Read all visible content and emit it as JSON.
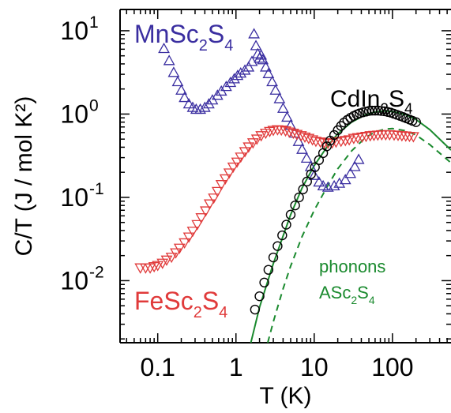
{
  "chart_data": {
    "type": "scatter",
    "xlabel": "T (K)",
    "ylabel": "C/T (J / mol K²)",
    "xscale": "log",
    "yscale": "log",
    "xlim": [
      0.033,
      560
    ],
    "ylim": [
      0.0018,
      18
    ],
    "x_ticks": [
      {
        "value": 0.1,
        "label": "0.1"
      },
      {
        "value": 1,
        "label": "1"
      },
      {
        "value": 10,
        "label": "10"
      },
      {
        "value": 100,
        "label": "100"
      }
    ],
    "y_ticks": [
      {
        "value": 0.01,
        "base": "10",
        "exp": "-2"
      },
      {
        "value": 0.1,
        "base": "10",
        "exp": "-1"
      },
      {
        "value": 1,
        "base": "10",
        "exp": "0"
      },
      {
        "value": 10,
        "base": "10",
        "exp": "1"
      }
    ],
    "grid": false,
    "series": [
      {
        "label_parts": {
          "base": "MnSc",
          "sub1": "2",
          "mid": "S",
          "sub2": "4"
        },
        "marker": "triangle-up",
        "color": "#3a2ea0",
        "points": [
          [
            0.12,
            6.0
          ],
          [
            0.14,
            4.3
          ],
          [
            0.16,
            3.1
          ],
          [
            0.18,
            2.4
          ],
          [
            0.2,
            1.9
          ],
          [
            0.22,
            1.55
          ],
          [
            0.25,
            1.3
          ],
          [
            0.28,
            1.18
          ],
          [
            0.31,
            1.12
          ],
          [
            0.35,
            1.12
          ],
          [
            0.4,
            1.18
          ],
          [
            0.45,
            1.3
          ],
          [
            0.5,
            1.45
          ],
          [
            0.58,
            1.65
          ],
          [
            0.65,
            1.85
          ],
          [
            0.75,
            2.1
          ],
          [
            0.85,
            2.35
          ],
          [
            0.95,
            2.6
          ],
          [
            1.05,
            2.85
          ],
          [
            1.15,
            3.05
          ],
          [
            1.3,
            3.3
          ],
          [
            1.45,
            3.6
          ],
          [
            1.6,
            4.2
          ],
          [
            1.7,
            9.0
          ],
          [
            1.8,
            6.5
          ],
          [
            1.9,
            5.2
          ],
          [
            2.0,
            4.6
          ],
          [
            2.1,
            5.0
          ],
          [
            2.2,
            4.4
          ],
          [
            2.4,
            3.6
          ],
          [
            2.6,
            3.0
          ],
          [
            2.9,
            2.4
          ],
          [
            3.2,
            1.9
          ],
          [
            3.6,
            1.5
          ],
          [
            4.0,
            1.15
          ],
          [
            4.5,
            0.9
          ],
          [
            5.0,
            0.72
          ],
          [
            5.6,
            0.58
          ],
          [
            6.3,
            0.46
          ],
          [
            7.0,
            0.37
          ],
          [
            8.0,
            0.29
          ],
          [
            9.0,
            0.23
          ],
          [
            10.0,
            0.18
          ],
          [
            11.5,
            0.15
          ],
          [
            13.0,
            0.135
          ],
          [
            15.0,
            0.13
          ],
          [
            18.0,
            0.135
          ],
          [
            21.0,
            0.145
          ],
          [
            25.0,
            0.16
          ],
          [
            29.0,
            0.19
          ],
          [
            33.0,
            0.23
          ],
          [
            37.0,
            0.28
          ]
        ]
      },
      {
        "label_parts": {
          "base": "FeSc",
          "sub1": "2",
          "mid": "S",
          "sub2": "4"
        },
        "marker": "triangle-down",
        "color": "#e03a3a",
        "points": [
          [
            0.06,
            0.0145
          ],
          [
            0.07,
            0.0145
          ],
          [
            0.08,
            0.0145
          ],
          [
            0.09,
            0.015
          ],
          [
            0.1,
            0.0155
          ],
          [
            0.115,
            0.0165
          ],
          [
            0.13,
            0.018
          ],
          [
            0.15,
            0.0195
          ],
          [
            0.17,
            0.022
          ],
          [
            0.19,
            0.025
          ],
          [
            0.22,
            0.029
          ],
          [
            0.25,
            0.034
          ],
          [
            0.28,
            0.04
          ],
          [
            0.32,
            0.048
          ],
          [
            0.36,
            0.058
          ],
          [
            0.41,
            0.07
          ],
          [
            0.46,
            0.085
          ],
          [
            0.52,
            0.1
          ],
          [
            0.58,
            0.12
          ],
          [
            0.65,
            0.145
          ],
          [
            0.73,
            0.17
          ],
          [
            0.82,
            0.2
          ],
          [
            0.92,
            0.235
          ],
          [
            1.03,
            0.27
          ],
          [
            1.15,
            0.31
          ],
          [
            1.3,
            0.36
          ],
          [
            1.45,
            0.41
          ],
          [
            1.65,
            0.46
          ],
          [
            1.85,
            0.51
          ],
          [
            2.1,
            0.56
          ],
          [
            2.4,
            0.6
          ],
          [
            2.7,
            0.63
          ],
          [
            3.0,
            0.65
          ],
          [
            3.4,
            0.66
          ],
          [
            3.8,
            0.655
          ],
          [
            4.3,
            0.64
          ],
          [
            4.8,
            0.62
          ],
          [
            5.4,
            0.6
          ],
          [
            6.0,
            0.58
          ],
          [
            6.8,
            0.56
          ],
          [
            7.6,
            0.54
          ],
          [
            8.5,
            0.52
          ],
          [
            9.5,
            0.5
          ],
          [
            10.5,
            0.48
          ],
          [
            12.0,
            0.47
          ],
          [
            13.5,
            0.46
          ],
          [
            15.0,
            0.455
          ],
          [
            17.0,
            0.46
          ],
          [
            19.0,
            0.47
          ],
          [
            22.0,
            0.48
          ],
          [
            25.0,
            0.49
          ],
          [
            28.0,
            0.5
          ],
          [
            32.0,
            0.52
          ],
          [
            36.0,
            0.53
          ],
          [
            41.0,
            0.54
          ],
          [
            46.0,
            0.55
          ],
          [
            52.0,
            0.56
          ],
          [
            58.0,
            0.565
          ],
          [
            65.0,
            0.57
          ],
          [
            73.0,
            0.575
          ],
          [
            82.0,
            0.575
          ],
          [
            92.0,
            0.575
          ],
          [
            105.0,
            0.57
          ],
          [
            118.0,
            0.565
          ],
          [
            132.0,
            0.56
          ],
          [
            148.0,
            0.555
          ],
          [
            165.0,
            0.55
          ],
          [
            185.0,
            0.545
          ]
        ]
      },
      {
        "label_parts": {
          "base": "CdIn",
          "sub1": "2",
          "mid": "S",
          "sub2": "4"
        },
        "marker": "circle",
        "color": "#000000",
        "points": [
          [
            1.75,
            0.0045
          ],
          [
            2.0,
            0.0065
          ],
          [
            2.3,
            0.0095
          ],
          [
            2.6,
            0.0135
          ],
          [
            3.0,
            0.019
          ],
          [
            3.4,
            0.026
          ],
          [
            3.9,
            0.035
          ],
          [
            4.4,
            0.047
          ],
          [
            5.0,
            0.062
          ],
          [
            5.7,
            0.08
          ],
          [
            6.4,
            0.1
          ],
          [
            7.2,
            0.125
          ],
          [
            8.1,
            0.155
          ],
          [
            9.1,
            0.19
          ],
          [
            10.2,
            0.23
          ],
          [
            11.5,
            0.28
          ],
          [
            13.0,
            0.34
          ],
          [
            14.5,
            0.41
          ],
          [
            16.0,
            0.48
          ],
          [
            18.0,
            0.56
          ],
          [
            20.0,
            0.64
          ],
          [
            22.0,
            0.72
          ],
          [
            24.0,
            0.79
          ],
          [
            26.5,
            0.85
          ],
          [
            29.0,
            0.9
          ],
          [
            32.0,
            0.95
          ],
          [
            35.0,
            0.99
          ],
          [
            38.0,
            1.02
          ],
          [
            42.0,
            1.05
          ],
          [
            46.0,
            1.07
          ],
          [
            50.0,
            1.09
          ],
          [
            55.0,
            1.1
          ],
          [
            60.0,
            1.1
          ],
          [
            66.0,
            1.1
          ],
          [
            72.0,
            1.09
          ],
          [
            79.0,
            1.08
          ],
          [
            87.0,
            1.06
          ],
          [
            95.0,
            1.04
          ],
          [
            104.0,
            1.01
          ],
          [
            114.0,
            0.98
          ],
          [
            125.0,
            0.95
          ],
          [
            137.0,
            0.92
          ],
          [
            150.0,
            0.89
          ],
          [
            165.0,
            0.86
          ],
          [
            180.0,
            0.83
          ],
          [
            200.0,
            0.8
          ]
        ]
      }
    ],
    "lines": [
      {
        "style": "solid",
        "color": "#1a8a2e",
        "points": [
          [
            1.55,
            0.0018
          ],
          [
            2.0,
            0.0048
          ],
          [
            3.0,
            0.016
          ],
          [
            5.0,
            0.062
          ],
          [
            7.0,
            0.13
          ],
          [
            10.0,
            0.24
          ],
          [
            15.0,
            0.42
          ],
          [
            20.0,
            0.58
          ],
          [
            30.0,
            0.8
          ],
          [
            45.0,
            0.98
          ],
          [
            60.0,
            1.06
          ],
          [
            80.0,
            1.09
          ],
          [
            100.0,
            1.07
          ],
          [
            150.0,
            0.98
          ],
          [
            200.0,
            0.86
          ],
          [
            300.0,
            0.65
          ],
          [
            450.0,
            0.45
          ],
          [
            560.0,
            0.37
          ]
        ]
      },
      {
        "style": "dashed",
        "color": "#1a8a2e",
        "label_line1": "phonons",
        "label_parts": {
          "base": "ASc",
          "sub1": "2",
          "mid": "S",
          "sub2": "4"
        },
        "points": [
          [
            2.55,
            0.0018
          ],
          [
            3.0,
            0.0032
          ],
          [
            4.0,
            0.008
          ],
          [
            5.0,
            0.015
          ],
          [
            7.0,
            0.034
          ],
          [
            10.0,
            0.07
          ],
          [
            15.0,
            0.14
          ],
          [
            20.0,
            0.22
          ],
          [
            30.0,
            0.36
          ],
          [
            45.0,
            0.52
          ],
          [
            60.0,
            0.61
          ],
          [
            80.0,
            0.66
          ],
          [
            100.0,
            0.67
          ],
          [
            150.0,
            0.63
          ],
          [
            200.0,
            0.56
          ],
          [
            300.0,
            0.43
          ],
          [
            450.0,
            0.31
          ],
          [
            560.0,
            0.26
          ]
        ]
      }
    ]
  }
}
